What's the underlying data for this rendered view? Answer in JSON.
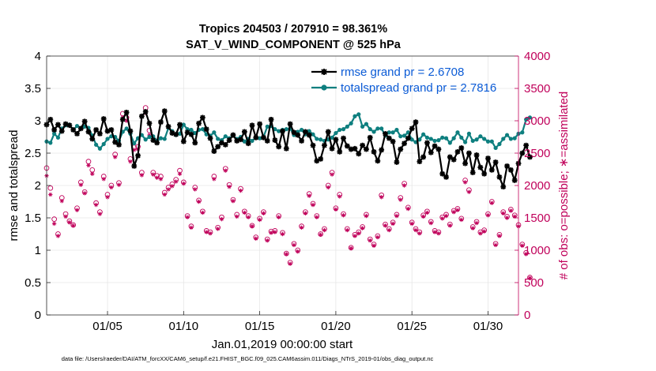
{
  "chart_data": {
    "type": "line",
    "title": "Tropics 204503 / 207910 = 98.361%",
    "subtitle": "SAT_V_WIND_COMPONENT @ 525 hPa",
    "xlabel": "Jan.01,2019 00:00:00 start",
    "ylabel": "rmse and totalspread",
    "ylabel_right": "# of obs: o=possible; ∗=assimilated",
    "footer": "data file: /Users/raeder/DAI/ATM_forcXX/CAM6_setup/f.e21.FHIST_BGC.f09_025.CAM6assim.011/Diags_NTrS_2019-01/obs_diag_output.nc",
    "xlim": [
      1,
      32
    ],
    "ylim": [
      0,
      4
    ],
    "ylim_right": [
      0,
      4000
    ],
    "x_tick_values": [
      5,
      10,
      15,
      20,
      25,
      30
    ],
    "x_tick_labels": [
      "01/05",
      "01/10",
      "01/15",
      "01/20",
      "01/25",
      "01/30"
    ],
    "y_tick_values": [
      0,
      0.5,
      1,
      1.5,
      2,
      2.5,
      3,
      3.5,
      4
    ],
    "y_tick_labels": [
      "0",
      "0.5",
      "1",
      "1.5",
      "2",
      "2.5",
      "3",
      "3.5",
      "4"
    ],
    "y_right_tick_values": [
      0,
      500,
      1000,
      1500,
      2000,
      2500,
      3000,
      3500,
      4000
    ],
    "y_right_tick_labels": [
      "0",
      "500",
      "1000",
      "1500",
      "2000",
      "2500",
      "3000",
      "3500",
      "4000"
    ],
    "grid": true,
    "legend_position": "top-right",
    "series": [
      {
        "name": "rmse grand pr = 2.6708",
        "color": "#000000",
        "marker": "star",
        "x_start": 1,
        "x_step": 0.25,
        "values": [
          2.94,
          3.02,
          2.86,
          2.94,
          2.84,
          2.95,
          2.93,
          2.86,
          2.8,
          2.88,
          2.99,
          2.83,
          2.72,
          2.86,
          2.8,
          3.03,
          2.84,
          2.86,
          2.67,
          2.63,
          3.02,
          3.13,
          2.84,
          2.3,
          2.46,
          3.07,
          3.14,
          2.96,
          2.7,
          2.66,
          2.98,
          3.15,
          2.91,
          2.81,
          2.79,
          2.94,
          2.68,
          2.82,
          2.79,
          2.66,
          2.96,
          3.05,
          2.87,
          2.73,
          2.53,
          2.6,
          2.66,
          2.63,
          2.7,
          2.78,
          2.69,
          2.71,
          2.83,
          2.65,
          2.93,
          2.74,
          2.95,
          2.74,
          2.69,
          3.02,
          2.7,
          2.6,
          2.84,
          2.57,
          2.95,
          2.82,
          2.78,
          2.69,
          2.83,
          2.78,
          2.62,
          2.38,
          2.41,
          2.62,
          2.83,
          2.57,
          2.71,
          2.52,
          2.73,
          2.61,
          2.56,
          2.57,
          2.49,
          2.62,
          2.56,
          2.74,
          2.52,
          2.38,
          2.55,
          2.8,
          2.73,
          2.68,
          2.36,
          2.56,
          2.65,
          2.73,
          2.88,
          2.98,
          2.37,
          2.44,
          2.66,
          2.51,
          2.61,
          2.56,
          2.18,
          2.13,
          2.44,
          2.4,
          2.52,
          2.58,
          2.34,
          2.5,
          2.2,
          2.47,
          2.28,
          2.18,
          2.42,
          2.24,
          2.36,
          2.13,
          1.98,
          2.3,
          2.24,
          2.08,
          2.34,
          2.5,
          2.62,
          2.44
        ],
        "rmse_grand": 2.6708
      },
      {
        "name": "totalspread grand pr = 2.7816",
        "color": "#0e7f7f",
        "marker": "dot",
        "x_start": 1,
        "x_step": 0.25,
        "values": [
          2.68,
          2.66,
          2.8,
          2.74,
          2.88,
          2.93,
          2.94,
          2.86,
          2.92,
          2.89,
          2.91,
          2.89,
          2.77,
          2.63,
          2.57,
          2.64,
          2.72,
          2.76,
          2.75,
          2.69,
          2.83,
          2.88,
          2.8,
          2.65,
          2.73,
          2.78,
          2.71,
          2.75,
          2.76,
          2.69,
          2.73,
          2.72,
          2.89,
          2.84,
          2.78,
          2.8,
          2.94,
          2.87,
          2.86,
          2.81,
          2.86,
          2.87,
          2.79,
          2.77,
          2.82,
          2.72,
          2.7,
          2.76,
          2.73,
          2.77,
          2.72,
          2.75,
          2.68,
          2.72,
          2.69,
          2.74,
          2.73,
          2.75,
          2.91,
          2.92,
          2.87,
          2.84,
          2.86,
          2.87,
          2.88,
          2.78,
          2.83,
          2.86,
          2.79,
          2.84,
          2.79,
          2.72,
          2.71,
          2.69,
          2.71,
          2.74,
          2.81,
          2.86,
          2.87,
          2.91,
          2.96,
          3.07,
          3.1,
          2.91,
          2.95,
          2.87,
          2.83,
          2.88,
          2.88,
          2.77,
          2.82,
          2.82,
          2.86,
          2.76,
          2.77,
          2.82,
          2.71,
          2.67,
          2.71,
          2.79,
          2.74,
          2.72,
          2.69,
          2.7,
          2.74,
          2.73,
          2.66,
          2.73,
          2.82,
          2.74,
          2.67,
          2.8,
          2.69,
          2.71,
          2.76,
          2.72,
          2.68,
          2.68,
          2.58,
          2.64,
          2.72,
          2.78,
          2.72,
          2.73,
          2.8,
          2.82,
          3.02,
          3.05
        ],
        "totalspread_grand": 2.7816
      }
    ],
    "obs_series": [
      {
        "name": "possible",
        "marker": "o",
        "axis": "right",
        "color": "#c0005a",
        "x_start": 1,
        "x_step": 0.25,
        "values": [
          2270,
          1960,
          1480,
          1250,
          1810,
          1560,
          1450,
          1390,
          1650,
          2050,
          1900,
          2370,
          2240,
          1730,
          1590,
          2140,
          1860,
          2000,
          2480,
          2040,
          3110,
          3050,
          2410,
          2590,
          2600,
          2200,
          3200,
          2850,
          2200,
          2150,
          2140,
          1890,
          1970,
          2020,
          2090,
          2230,
          2050,
          1530,
          1370,
          1970,
          1770,
          1600,
          1300,
          1280,
          2140,
          1350,
          1510,
          2260,
          2010,
          1780,
          1550,
          1950,
          1600,
          1530,
          1380,
          1200,
          1490,
          1590,
          1170,
          1290,
          1300,
          1530,
          1270,
          950,
          810,
          1100,
          1000,
          1370,
          1590,
          1870,
          1720,
          1530,
          1250,
          1330,
          2000,
          2200,
          1650,
          1860,
          1560,
          1330,
          1040,
          1240,
          1280,
          1360,
          1550,
          1170,
          1090,
          1220,
          1850,
          1400,
          1330,
          1430,
          1550,
          1810,
          2030,
          1660,
          1430,
          1330,
          1280,
          1540,
          1600,
          1440,
          1300,
          1280,
          1510,
          1550,
          1400,
          1610,
          1640,
          1490,
          2080,
          1930,
          1360,
          1440,
          1280,
          1310,
          1560,
          1750,
          1100,
          1240,
          1590,
          1520,
          1630,
          1540,
          1390,
          1090,
          960,
          580
        ],
        "total_possible": 207910
      },
      {
        "name": "assimilated",
        "marker": "*",
        "axis": "right",
        "color": "#c0005a",
        "x_start": 1,
        "x_step": 0.25,
        "values": [
          2150,
          1860,
          1410,
          1220,
          1760,
          1520,
          1430,
          1380,
          1620,
          2010,
          1880,
          2310,
          2180,
          1700,
          1560,
          2100,
          1820,
          1970,
          2440,
          2010,
          3050,
          3000,
          2370,
          2550,
          2560,
          2160,
          3120,
          2780,
          2170,
          2120,
          2100,
          1860,
          1940,
          1990,
          2060,
          2180,
          2030,
          1510,
          1350,
          1940,
          1750,
          1580,
          1280,
          1260,
          2100,
          1330,
          1480,
          2230,
          1980,
          1760,
          1520,
          1920,
          1580,
          1510,
          1370,
          1180,
          1470,
          1570,
          1150,
          1270,
          1280,
          1510,
          1250,
          940,
          790,
          1080,
          980,
          1350,
          1570,
          1840,
          1700,
          1510,
          1240,
          1310,
          1970,
          2170,
          1630,
          1830,
          1540,
          1310,
          1030,
          1220,
          1260,
          1340,
          1530,
          1150,
          1070,
          1200,
          1820,
          1380,
          1310,
          1410,
          1530,
          1780,
          2000,
          1640,
          1410,
          1310,
          1260,
          1520,
          1580,
          1420,
          1280,
          1260,
          1490,
          1530,
          1380,
          1590,
          1620,
          1470,
          2050,
          1900,
          1340,
          1420,
          1260,
          1290,
          1540,
          1730,
          1080,
          1220,
          1570,
          1500,
          1610,
          1520,
          1370,
          1070,
          940,
          570
        ],
        "total_assimilated": 204503
      }
    ]
  }
}
